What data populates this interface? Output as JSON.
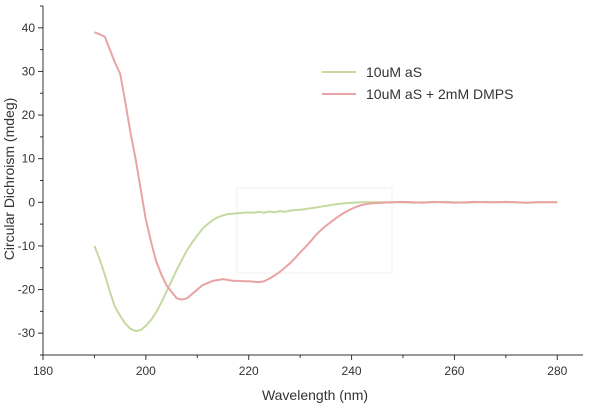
{
  "chart_data": {
    "type": "line",
    "title": "",
    "xlabel": "Wavelength (nm)",
    "ylabel": "Circular Dichroism (mdeg)",
    "xlim": [
      180,
      285
    ],
    "ylim": [
      -35,
      45
    ],
    "xticks": [
      180,
      200,
      220,
      240,
      260,
      280
    ],
    "yticks": [
      -30,
      -20,
      -10,
      0,
      10,
      20,
      30,
      40
    ],
    "grid": false,
    "legend_position": "top-right",
    "series": [
      {
        "name": "10uM aS",
        "color": "#c5d9a0",
        "x": [
          190,
          191,
          192,
          193,
          194,
          195,
          196,
          197,
          198,
          199,
          200,
          201,
          202,
          203,
          204,
          205,
          206,
          207,
          208,
          209,
          210,
          211,
          212,
          213,
          214,
          215,
          216,
          217,
          218,
          219,
          220,
          221,
          222,
          223,
          224,
          225,
          226,
          227,
          228,
          229,
          230,
          232,
          234,
          236,
          238,
          240,
          242,
          244,
          246,
          248,
          250,
          252,
          254,
          256,
          258,
          260,
          262,
          264,
          266,
          268,
          270,
          272,
          274,
          276,
          278,
          280
        ],
        "y": [
          -10,
          -13,
          -16.5,
          -20.5,
          -24,
          -26,
          -27.8,
          -29,
          -29.5,
          -29.3,
          -28.3,
          -27,
          -25.2,
          -23,
          -20.5,
          -18,
          -15.5,
          -13.2,
          -11,
          -9.2,
          -7.6,
          -6.1,
          -5,
          -4.1,
          -3.4,
          -3,
          -2.7,
          -2.6,
          -2.5,
          -2.4,
          -2.3,
          -2.4,
          -2.2,
          -2.4,
          -2.1,
          -2.3,
          -2,
          -2.2,
          -1.9,
          -1.8,
          -1.7,
          -1.4,
          -1,
          -0.6,
          -0.3,
          -0.1,
          0,
          0,
          0,
          0,
          0,
          -0.1,
          0,
          0,
          0.1,
          0,
          -0.1,
          0,
          0.1,
          0,
          0,
          0,
          -0.1,
          0,
          0,
          0
        ]
      },
      {
        "name": "10uM aS + 2mM DMPS",
        "color": "#e8a4a4",
        "x": [
          190,
          191,
          192,
          193,
          194,
          195,
          196,
          197,
          198,
          199,
          200,
          201,
          202,
          203,
          204,
          205,
          206,
          207,
          208,
          209,
          210,
          211,
          212,
          213,
          214,
          215,
          216,
          217,
          218,
          219,
          220,
          221,
          222,
          223,
          224,
          225,
          226,
          227,
          228,
          229,
          230,
          231,
          232,
          233,
          234,
          235,
          236,
          237,
          238,
          239,
          240,
          241,
          242,
          243,
          244,
          246,
          248,
          250,
          252,
          254,
          256,
          258,
          260,
          262,
          264,
          266,
          268,
          270,
          272,
          274,
          276,
          278,
          280
        ],
        "y": [
          39,
          38.5,
          38,
          35,
          32,
          29.5,
          23,
          16,
          10,
          3,
          -4,
          -9,
          -13.5,
          -16.5,
          -19,
          -20.5,
          -22,
          -22.3,
          -22,
          -21,
          -20,
          -19,
          -18.5,
          -18,
          -17.8,
          -17.6,
          -17.8,
          -18,
          -18,
          -18.1,
          -18.1,
          -18.2,
          -18.3,
          -18.1,
          -17.5,
          -16.8,
          -16,
          -15,
          -14,
          -12.8,
          -11.5,
          -10.3,
          -9,
          -7.6,
          -6.4,
          -5.4,
          -4.5,
          -3.6,
          -2.8,
          -2.1,
          -1.5,
          -1,
          -0.6,
          -0.4,
          -0.2,
          -0.1,
          0,
          0.1,
          0,
          -0.1,
          0.1,
          0,
          -0.1,
          0,
          0.1,
          0,
          0,
          0.1,
          0,
          -0.1,
          0,
          0,
          0
        ]
      }
    ]
  }
}
